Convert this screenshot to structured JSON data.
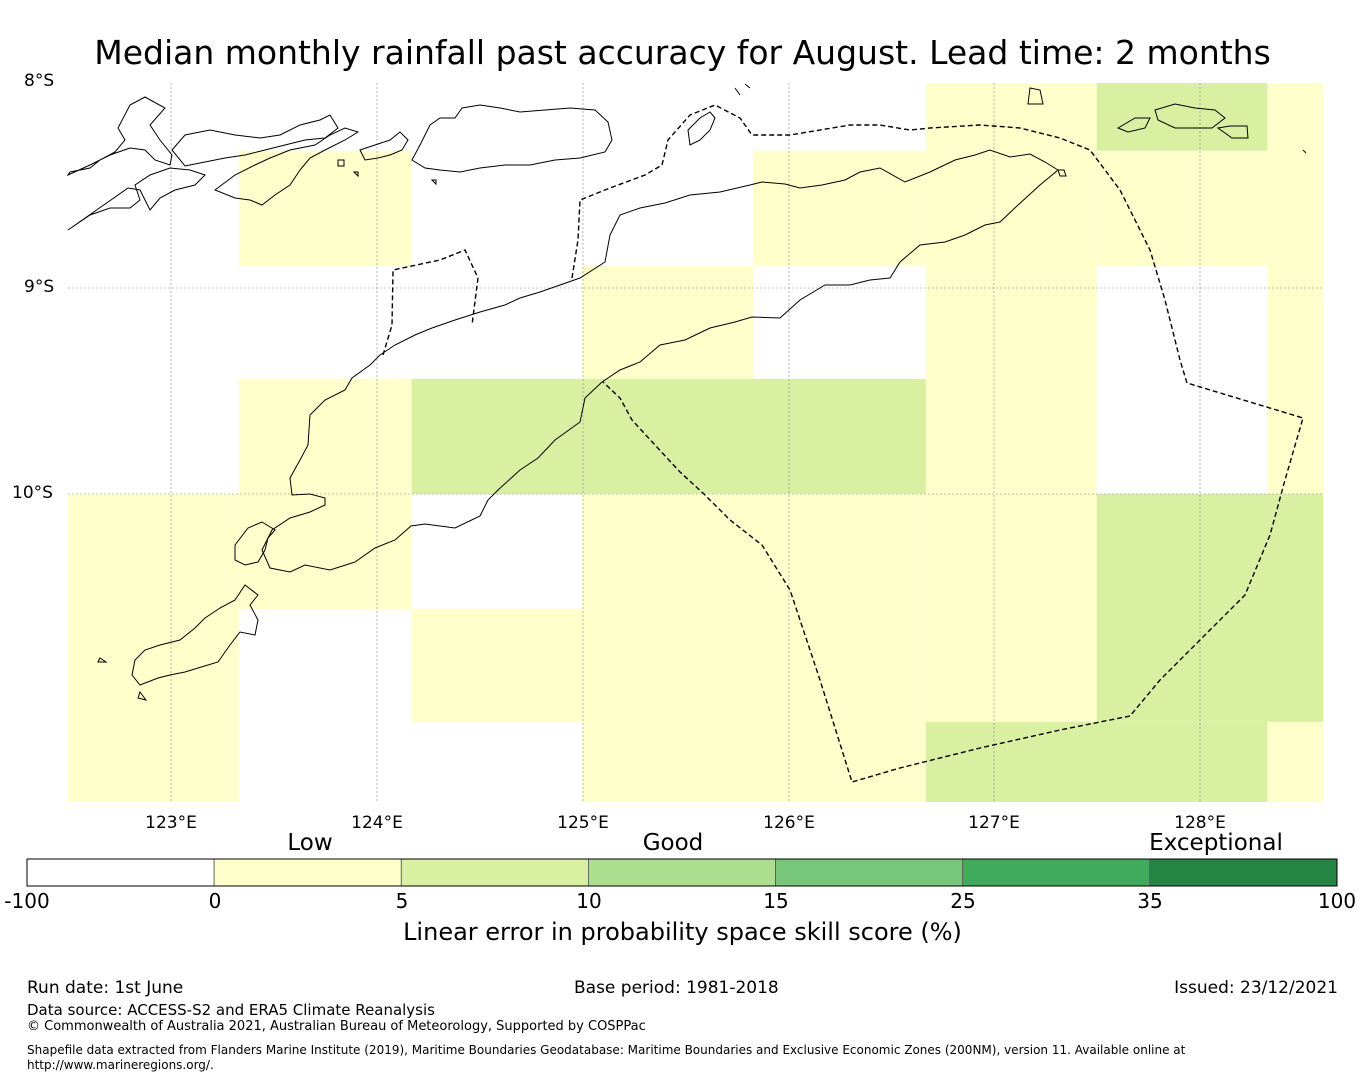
{
  "title": "Median monthly rainfall past accuracy for August. Lead time: 2 months",
  "map": {
    "lat_labels": [
      "8°S",
      "9°S",
      "10°S"
    ],
    "lon_labels": [
      "123°E",
      "124°E",
      "125°E",
      "126°E",
      "127°E",
      "128°E"
    ],
    "lon_range": [
      122.5,
      128.6
    ],
    "lat_range": [
      -8.0,
      -11.5
    ],
    "gridlines": true,
    "skill_cells": [
      {
        "lon": [
          122.5,
          123.33
        ],
        "lat": [
          -10.0,
          -11.5
        ],
        "category": "0-5"
      },
      {
        "lon": [
          123.33,
          124.17
        ],
        "lat": [
          -8.33,
          -8.89
        ],
        "category": "0-5"
      },
      {
        "lon": [
          123.33,
          124.17
        ],
        "lat": [
          -9.44,
          -10.0
        ],
        "category": "0-5"
      },
      {
        "lon": [
          123.33,
          124.17
        ],
        "lat": [
          -10.0,
          -10.56
        ],
        "category": "0-5"
      },
      {
        "lon": [
          124.17,
          125.0
        ],
        "lat": [
          -9.44,
          -10.0
        ],
        "category": "5-10"
      },
      {
        "lon": [
          124.17,
          125.0
        ],
        "lat": [
          -10.56,
          -11.11
        ],
        "category": "0-5"
      },
      {
        "lon": [
          125.0,
          125.83
        ],
        "lat": [
          -8.89,
          -9.44
        ],
        "category": "0-5"
      },
      {
        "lon": [
          125.0,
          126.67
        ],
        "lat": [
          -9.44,
          -10.0
        ],
        "category": "5-10"
      },
      {
        "lon": [
          125.0,
          126.67
        ],
        "lat": [
          -10.0,
          -11.5
        ],
        "category": "0-5"
      },
      {
        "lon": [
          125.83,
          126.67
        ],
        "lat": [
          -8.33,
          -8.89
        ],
        "category": "0-5"
      },
      {
        "lon": [
          126.67,
          127.5
        ],
        "lat": [
          -8.0,
          -11.11
        ],
        "category": "0-5"
      },
      {
        "lon": [
          126.67,
          128.33
        ],
        "lat": [
          -11.11,
          -11.5
        ],
        "category": "5-10"
      },
      {
        "lon": [
          127.5,
          128.33
        ],
        "lat": [
          -8.0,
          -8.33
        ],
        "category": "5-10"
      },
      {
        "lon": [
          127.5,
          128.33
        ],
        "lat": [
          -8.33,
          -8.89
        ],
        "category": "0-5"
      },
      {
        "lon": [
          127.5,
          128.6
        ],
        "lat": [
          -10.0,
          -11.11
        ],
        "category": "5-10"
      },
      {
        "lon": [
          128.33,
          128.6
        ],
        "lat": [
          -8.0,
          -10.0
        ],
        "category": "0-5"
      },
      {
        "lon": [
          128.33,
          128.6
        ],
        "lat": [
          -11.11,
          -11.5
        ],
        "category": "0-5"
      }
    ]
  },
  "colorbar": {
    "category_labels": [
      "Low",
      "Good",
      "Exceptional"
    ],
    "ticks": [
      "-100",
      "0",
      "5",
      "10",
      "15",
      "25",
      "35",
      "100"
    ],
    "colors": [
      "#ffffff",
      "#ffffcc",
      "#d9f0a3",
      "#addd8e",
      "#78c679",
      "#41ab5d",
      "#238443"
    ],
    "label": "Linear error in probability space skill score (%)"
  },
  "footer": {
    "run_date": "Run date: 1st June",
    "base_period": "Base period: 1981-2018",
    "issued": "Issued: 23/12/2021",
    "data_source": "Data source: ACCESS-S2 and ERA5 Climate Reanalysis",
    "copyright": "© Commonwealth of Australia 2021, Australian Bureau of Meteorology, Supported by COSPPac",
    "shapefile_line1": "Shapefile data extracted from Flanders Marine Institute (2019), Maritime Boundaries Geodatabase: Maritime Boundaries and Exclusive Economic Zones (200NM), version 11. Available online at",
    "shapefile_line2": "http://www.marineregions.org/."
  }
}
